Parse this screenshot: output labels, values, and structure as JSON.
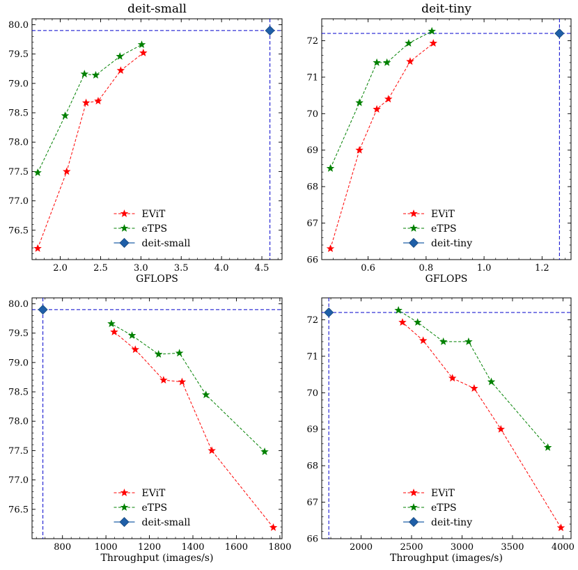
{
  "chart_data": [
    {
      "type": "line",
      "title": "deit-small",
      "xlabel": "GFLOPS",
      "ylabel": "",
      "xlim": [
        1.65,
        4.75
      ],
      "ylim": [
        76.0,
        80.1
      ],
      "xticks": [
        2.0,
        2.5,
        3.0,
        3.5,
        4.0,
        4.5
      ],
      "xtick_labels": [
        "2.0",
        "2.5",
        "3.0",
        "3.5",
        "4.0",
        "4.5"
      ],
      "yticks": [
        76.5,
        77.0,
        77.5,
        78.0,
        78.5,
        79.0,
        79.5,
        80.0
      ],
      "ytick_labels": [
        "76.5",
        "77.0",
        "77.5",
        "78.0",
        "78.5",
        "79.0",
        "79.5",
        "80.0"
      ],
      "legend_position": "lower-center",
      "series": [
        {
          "name": "EViT",
          "color": "#ff0000",
          "marker": "star",
          "x": [
            1.72,
            2.08,
            2.32,
            2.47,
            2.75,
            3.03
          ],
          "y": [
            76.19,
            77.5,
            78.67,
            78.7,
            79.22,
            79.52
          ]
        },
        {
          "name": "eTPS",
          "color": "#008000",
          "marker": "star",
          "x": [
            1.72,
            2.06,
            2.3,
            2.44,
            2.74,
            3.01
          ],
          "y": [
            77.48,
            78.45,
            79.16,
            79.14,
            79.46,
            79.66
          ]
        },
        {
          "name": "deit-small",
          "color": "#1f5fa8",
          "marker": "diamond",
          "x": [
            4.6
          ],
          "y": [
            79.9
          ],
          "refline": true
        }
      ]
    },
    {
      "type": "line",
      "title": "deit-tiny",
      "xlabel": "GFLOPS",
      "ylabel": "",
      "xlim": [
        0.44,
        1.3
      ],
      "ylim": [
        66.0,
        72.6
      ],
      "xticks": [
        0.6,
        0.8,
        1.0,
        1.2
      ],
      "xtick_labels": [
        "0.6",
        "0.8",
        "1.0",
        "1.2"
      ],
      "yticks": [
        66,
        67,
        68,
        69,
        70,
        71,
        72
      ],
      "ytick_labels": [
        "66",
        "67",
        "68",
        "69",
        "70",
        "71",
        "72"
      ],
      "legend_position": "lower-center",
      "series": [
        {
          "name": "EViT",
          "color": "#ff0000",
          "marker": "star",
          "x": [
            0.47,
            0.57,
            0.63,
            0.67,
            0.745,
            0.825
          ],
          "y": [
            66.3,
            69.0,
            70.12,
            70.4,
            71.43,
            71.93
          ]
        },
        {
          "name": "eTPS",
          "color": "#008000",
          "marker": "star",
          "x": [
            0.47,
            0.57,
            0.63,
            0.665,
            0.74,
            0.82
          ],
          "y": [
            68.5,
            70.3,
            71.4,
            71.4,
            71.93,
            72.26
          ]
        },
        {
          "name": "deit-tiny",
          "color": "#1f5fa8",
          "marker": "diamond",
          "x": [
            1.26
          ],
          "y": [
            72.2
          ],
          "refline": true
        }
      ]
    },
    {
      "type": "line",
      "title": "",
      "xlabel": "Throughput (images/s)",
      "ylabel": "",
      "xlim": [
        660,
        1810
      ],
      "ylim": [
        76.0,
        80.1
      ],
      "xticks": [
        800,
        1000,
        1200,
        1400,
        1600,
        1800
      ],
      "xtick_labels": [
        "800",
        "1000",
        "1200",
        "1400",
        "1600",
        "1800"
      ],
      "yticks": [
        76.5,
        77.0,
        77.5,
        78.0,
        78.5,
        79.0,
        79.5,
        80.0
      ],
      "ytick_labels": [
        "76.5",
        "77.0",
        "77.5",
        "78.0",
        "78.5",
        "79.0",
        "79.5",
        "80.0"
      ],
      "legend_position": "lower-center",
      "series": [
        {
          "name": "EViT",
          "color": "#ff0000",
          "marker": "star",
          "x": [
            1770,
            1487,
            1350,
            1265,
            1135,
            1038
          ],
          "y": [
            76.19,
            77.5,
            78.67,
            78.7,
            79.22,
            79.52
          ]
        },
        {
          "name": "eTPS",
          "color": "#008000",
          "marker": "star",
          "x": [
            1730,
            1460,
            1338,
            1242,
            1120,
            1025
          ],
          "y": [
            77.48,
            78.45,
            79.16,
            79.14,
            79.46,
            79.66
          ]
        },
        {
          "name": "deit-small",
          "color": "#1f5fa8",
          "marker": "diamond",
          "x": [
            710
          ],
          "y": [
            79.9
          ],
          "refline": true
        }
      ]
    },
    {
      "type": "line",
      "title": "",
      "xlabel": "Throughput (images/s)",
      "ylabel": "",
      "xlim": [
        1610,
        4080
      ],
      "ylim": [
        66.0,
        72.6
      ],
      "xticks": [
        2000,
        2500,
        3000,
        3500,
        4000
      ],
      "xtick_labels": [
        "2000",
        "2500",
        "3000",
        "3500",
        "4000"
      ],
      "yticks": [
        66,
        67,
        68,
        69,
        70,
        71,
        72
      ],
      "ytick_labels": [
        "66",
        "67",
        "68",
        "69",
        "70",
        "71",
        "72"
      ],
      "legend_position": "lower-center",
      "series": [
        {
          "name": "EViT",
          "color": "#ff0000",
          "marker": "star",
          "x": [
            3980,
            3385,
            3120,
            2905,
            2615,
            2410
          ],
          "y": [
            66.3,
            69.0,
            70.12,
            70.4,
            71.43,
            71.93
          ]
        },
        {
          "name": "eTPS",
          "color": "#008000",
          "marker": "star",
          "x": [
            3850,
            3290,
            3065,
            2815,
            2560,
            2370
          ],
          "y": [
            68.5,
            70.3,
            71.4,
            71.4,
            71.93,
            72.26
          ]
        },
        {
          "name": "deit-tiny",
          "color": "#1f5fa8",
          "marker": "diamond",
          "x": [
            1680
          ],
          "y": [
            72.2
          ],
          "refline": true
        }
      ]
    }
  ]
}
